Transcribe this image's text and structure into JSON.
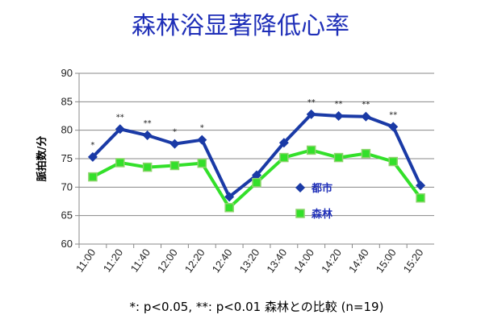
{
  "chart_data": {
    "type": "line",
    "title": "森林浴显著降低心率",
    "ylabel": "脈拍数/分",
    "xlabel": "",
    "ylim": [
      60,
      90
    ],
    "yticks": [
      60,
      65,
      70,
      75,
      80,
      85,
      90
    ],
    "grid": true,
    "legend_position": "center-right",
    "categories": [
      "11:00",
      "11:20",
      "11:40",
      "12:00",
      "12:20",
      "12:40",
      "13:20",
      "13:40",
      "14:00",
      "14:20",
      "14:40",
      "15:00",
      "15:20"
    ],
    "series": [
      {
        "name": "都市",
        "color": "#1a3aa6",
        "marker": "diamond",
        "values": [
          75.3,
          80.2,
          79.1,
          77.6,
          78.3,
          68.3,
          72.1,
          77.8,
          82.8,
          82.5,
          82.4,
          80.6,
          70.3
        ]
      },
      {
        "name": "森林",
        "color": "#33e02a",
        "marker": "square",
        "values": [
          71.8,
          74.3,
          73.5,
          73.8,
          74.2,
          66.4,
          70.8,
          75.2,
          76.5,
          75.2,
          75.9,
          74.5,
          68.1
        ]
      }
    ],
    "significance": [
      "*",
      "**",
      "**",
      "*",
      "*",
      "",
      "",
      "",
      "**",
      "**",
      "**",
      "**",
      ""
    ],
    "footnote": "*: p<0.05, **: p<0.01 森林との比較 (n=19)"
  }
}
